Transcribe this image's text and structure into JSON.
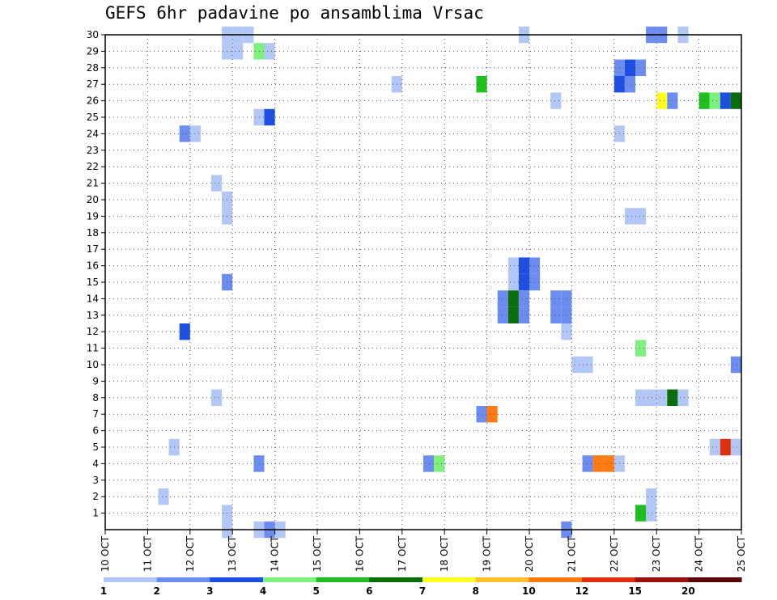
{
  "chart_data": {
    "type": "heatmap",
    "title": "GEFS 6hr padavine po ansamblima Vrsac",
    "xlabel": "",
    "ylabel": "",
    "x_ticks": [
      "10 OCT",
      "11 OCT",
      "12 OCT",
      "13 OCT",
      "14 OCT",
      "15 OCT",
      "16 OCT",
      "17 OCT",
      "18 OCT",
      "19 OCT",
      "20 OCT",
      "21 OCT",
      "22 OCT",
      "23 OCT",
      "24 OCT",
      "25 OCT"
    ],
    "x_range": [
      "10 OCT 00",
      "25 OCT 00"
    ],
    "x_step_hours": 6,
    "y_ticks": [
      1,
      2,
      3,
      4,
      5,
      6,
      7,
      8,
      9,
      10,
      11,
      12,
      13,
      14,
      15,
      16,
      17,
      18,
      19,
      20,
      21,
      22,
      23,
      24,
      25,
      26,
      27,
      28,
      29,
      30
    ],
    "y_range": [
      0,
      30
    ],
    "grid": true,
    "colorbar": {
      "labels": [
        "1",
        "2",
        "3",
        "4",
        "5",
        "6",
        "7",
        "8",
        "10",
        "12",
        "15",
        "20"
      ],
      "colors": [
        "#b3c7f7",
        "#6d8cf0",
        "#1f4fe0",
        "#7ef07e",
        "#1fbf1f",
        "#0a6e0a",
        "#ffff22",
        "#ffc030",
        "#ff7a10",
        "#e03010",
        "#9a1010",
        "#5a0505"
      ]
    },
    "cells": [
      {
        "member": 30,
        "time": "12 OCT 18",
        "value": 1
      },
      {
        "member": 30,
        "time": "13 OCT 00",
        "value": 1
      },
      {
        "member": 30,
        "time": "13 OCT 06",
        "value": 1
      },
      {
        "member": 29,
        "time": "12 OCT 18",
        "value": 1
      },
      {
        "member": 29,
        "time": "13 OCT 00",
        "value": 1
      },
      {
        "member": 29,
        "time": "13 OCT 12",
        "value": 4
      },
      {
        "member": 29,
        "time": "13 OCT 18",
        "value": 1
      },
      {
        "member": 25,
        "time": "13 OCT 12",
        "value": 1
      },
      {
        "member": 25,
        "time": "13 OCT 18",
        "value": 3
      },
      {
        "member": 24,
        "time": "11 OCT 18",
        "value": 2
      },
      {
        "member": 24,
        "time": "12 OCT 00",
        "value": 1
      },
      {
        "member": 21,
        "time": "12 OCT 12",
        "value": 1
      },
      {
        "member": 20,
        "time": "12 OCT 18",
        "value": 1
      },
      {
        "member": 19,
        "time": "12 OCT 18",
        "value": 1
      },
      {
        "member": 15,
        "time": "12 OCT 18",
        "value": 2
      },
      {
        "member": 12,
        "time": "11 OCT 18",
        "value": 3
      },
      {
        "member": 8,
        "time": "12 OCT 12",
        "value": 1
      },
      {
        "member": 5,
        "time": "11 OCT 12",
        "value": 1
      },
      {
        "member": 4,
        "time": "13 OCT 12",
        "value": 2
      },
      {
        "member": 2,
        "time": "11 OCT 06",
        "value": 1
      },
      {
        "member": 1,
        "time": "12 OCT 18",
        "value": 1
      },
      {
        "member": 0,
        "time": "12 OCT 18",
        "value": 1
      },
      {
        "member": 0,
        "time": "13 OCT 12",
        "value": 1
      },
      {
        "member": 0,
        "time": "13 OCT 18",
        "value": 2
      },
      {
        "member": 0,
        "time": "14 OCT 00",
        "value": 1
      },
      {
        "member": 27,
        "time": "16 OCT 18",
        "value": 1
      },
      {
        "member": 4,
        "time": "17 OCT 12",
        "value": 2
      },
      {
        "member": 4,
        "time": "17 OCT 18",
        "value": 4
      },
      {
        "member": 27,
        "time": "18 OCT 18",
        "value": 5
      },
      {
        "member": 16,
        "time": "19 OCT 12",
        "value": 1
      },
      {
        "member": 16,
        "time": "19 OCT 18",
        "value": 3
      },
      {
        "member": 16,
        "time": "20 OCT 00",
        "value": 2
      },
      {
        "member": 15,
        "time": "19 OCT 12",
        "value": 1
      },
      {
        "member": 15,
        "time": "19 OCT 18",
        "value": 3
      },
      {
        "member": 15,
        "time": "20 OCT 00",
        "value": 2
      },
      {
        "member": 14,
        "time": "19 OCT 06",
        "value": 2
      },
      {
        "member": 14,
        "time": "19 OCT 12",
        "value": 6
      },
      {
        "member": 14,
        "time": "19 OCT 18",
        "value": 2
      },
      {
        "member": 13,
        "time": "19 OCT 06",
        "value": 2
      },
      {
        "member": 13,
        "time": "19 OCT 12",
        "value": 6
      },
      {
        "member": 13,
        "time": "19 OCT 18",
        "value": 2
      },
      {
        "member": 7,
        "time": "18 OCT 18",
        "value": 2
      },
      {
        "member": 7,
        "time": "19 OCT 00",
        "value": 10
      },
      {
        "member": 30,
        "time": "19 OCT 18",
        "value": 1
      },
      {
        "member": 26,
        "time": "20 OCT 12",
        "value": 1
      },
      {
        "member": 14,
        "time": "20 OCT 12",
        "value": 2
      },
      {
        "member": 14,
        "time": "20 OCT 18",
        "value": 2
      },
      {
        "member": 13,
        "time": "20 OCT 12",
        "value": 2
      },
      {
        "member": 13,
        "time": "20 OCT 18",
        "value": 2
      },
      {
        "member": 12,
        "time": "20 OCT 18",
        "value": 1
      },
      {
        "member": 10,
        "time": "21 OCT 00",
        "value": 1
      },
      {
        "member": 10,
        "time": "21 OCT 06",
        "value": 1
      },
      {
        "member": 4,
        "time": "21 OCT 06",
        "value": 2
      },
      {
        "member": 4,
        "time": "21 OCT 12",
        "value": 10
      },
      {
        "member": 4,
        "time": "21 OCT 18",
        "value": 10
      },
      {
        "member": 0,
        "time": "20 OCT 18",
        "value": 2
      },
      {
        "member": 28,
        "time": "22 OCT 00",
        "value": 2
      },
      {
        "member": 28,
        "time": "22 OCT 06",
        "value": 3
      },
      {
        "member": 28,
        "time": "22 OCT 12",
        "value": 2
      },
      {
        "member": 27,
        "time": "22 OCT 00",
        "value": 3
      },
      {
        "member": 27,
        "time": "22 OCT 06",
        "value": 2
      },
      {
        "member": 24,
        "time": "22 OCT 00",
        "value": 1
      },
      {
        "member": 4,
        "time": "22 OCT 00",
        "value": 1
      },
      {
        "member": 19,
        "time": "22 OCT 06",
        "value": 1
      },
      {
        "member": 19,
        "time": "22 OCT 12",
        "value": 1
      },
      {
        "member": 11,
        "time": "22 OCT 12",
        "value": 4
      },
      {
        "member": 8,
        "time": "22 OCT 12",
        "value": 1
      },
      {
        "member": 8,
        "time": "22 OCT 18",
        "value": 1
      },
      {
        "member": 8,
        "time": "23 OCT 00",
        "value": 1
      },
      {
        "member": 8,
        "time": "23 OCT 06",
        "value": 6
      },
      {
        "member": 8,
        "time": "23 OCT 12",
        "value": 1
      },
      {
        "member": 2,
        "time": "22 OCT 18",
        "value": 1
      },
      {
        "member": 1,
        "time": "22 OCT 18",
        "value": 1
      },
      {
        "member": 1,
        "time": "22 OCT 12",
        "value": 5
      },
      {
        "member": 30,
        "time": "22 OCT 18",
        "value": 2
      },
      {
        "member": 30,
        "time": "23 OCT 00",
        "value": 2
      },
      {
        "member": 30,
        "time": "23 OCT 12",
        "value": 1
      },
      {
        "member": 26,
        "time": "23 OCT 00",
        "value": 7
      },
      {
        "member": 26,
        "time": "23 OCT 06",
        "value": 2
      },
      {
        "member": 26,
        "time": "24 OCT 00",
        "value": 5
      },
      {
        "member": 26,
        "time": "24 OCT 06",
        "value": 4
      },
      {
        "member": 26,
        "time": "24 OCT 12",
        "value": 3
      },
      {
        "member": 26,
        "time": "24 OCT 18",
        "value": 6
      },
      {
        "member": 5,
        "time": "24 OCT 06",
        "value": 1
      },
      {
        "member": 5,
        "time": "24 OCT 12",
        "value": 12
      },
      {
        "member": 5,
        "time": "24 OCT 18",
        "value": 1
      },
      {
        "member": 10,
        "time": "24 OCT 18",
        "value": 2
      }
    ]
  }
}
